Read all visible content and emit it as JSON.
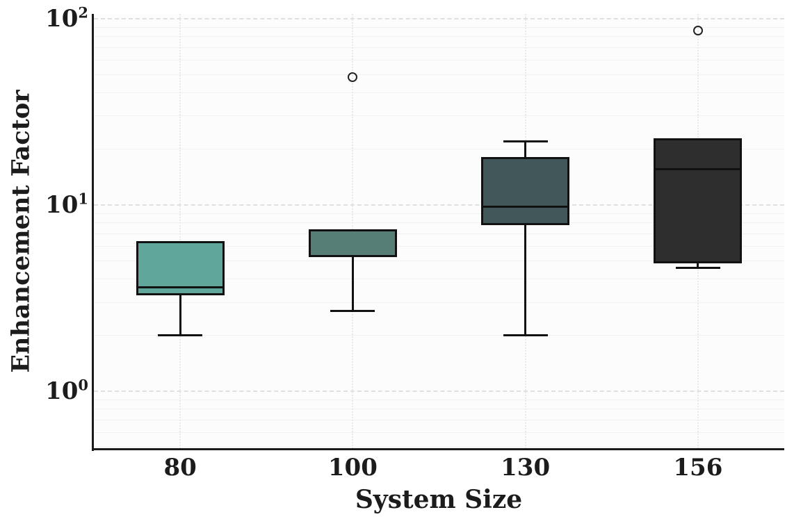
{
  "figure": {
    "background": "#ffffff",
    "plot_background": "#fcfcfc",
    "spine_color": "#1a1a1a",
    "edge_color": "#111111",
    "grid": {
      "major_color": "#e0e0e0",
      "minor_color": "#f1f1f1",
      "vertical_color": "#e9e9e9"
    }
  },
  "chart_data": {
    "type": "boxplot",
    "title": "",
    "xlabel": "System Size",
    "ylabel": "Enhancement Factor",
    "yscale": "log",
    "ylim": [
      0.49,
      106
    ],
    "grid": "major dashed horizontal at decades, faint minor log lines, dotted vertical at each category",
    "legend": "none",
    "ytick_labels": [
      {
        "base": "10",
        "exp": "2",
        "value": 100
      },
      {
        "base": "10",
        "exp": "1",
        "value": 10
      },
      {
        "base": "10",
        "exp": "0",
        "value": 1
      }
    ],
    "categories": [
      "80",
      "100",
      "130",
      "156"
    ],
    "boxes": [
      {
        "label": "80",
        "whislo": 2.0,
        "q1": 3.3,
        "med": 3.6,
        "q3": 6.3,
        "whishi": 6.3,
        "fliers": [],
        "fill": "#60a69b"
      },
      {
        "label": "100",
        "whislo": 2.7,
        "q1": 5.3,
        "med": 5.3,
        "q3": 7.3,
        "whishi": 7.3,
        "fliers": [
          48.5
        ],
        "fill": "#567d76"
      },
      {
        "label": "130",
        "whislo": 2.0,
        "q1": 7.9,
        "med": 9.8,
        "q3": 17.8,
        "whishi": 22.0,
        "fliers": [],
        "fill": "#42575a"
      },
      {
        "label": "156",
        "whislo": 4.6,
        "q1": 4.9,
        "med": 15.6,
        "q3": 22.4,
        "whishi": 22.4,
        "fliers": [
          86
        ],
        "fill": "#2e2e2e"
      }
    ]
  }
}
